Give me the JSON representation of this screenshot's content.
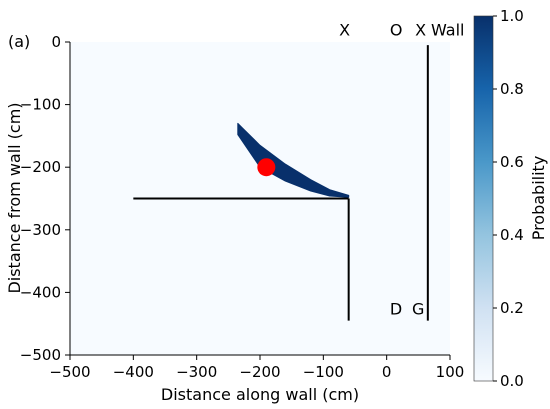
{
  "chart_data": {
    "type": "heatmap",
    "panel_label": "(a)",
    "xlabel": "Distance along wall (cm)",
    "ylabel": "Distance from wall (cm)",
    "xlim": [
      -500,
      100
    ],
    "ylim": [
      -500,
      0
    ],
    "x_ticks": [
      -500,
      -400,
      -300,
      -200,
      -100,
      0,
      100
    ],
    "y_ticks": [
      0,
      -100,
      -200,
      -300,
      -400,
      -500
    ],
    "background_probability": 0.0,
    "probability_band": {
      "description": "high-probability crescent",
      "probability": 1.0,
      "upper_edge": [
        [
          -235,
          -130
        ],
        [
          -200,
          -165
        ],
        [
          -160,
          -195
        ],
        [
          -120,
          -220
        ],
        [
          -90,
          -236
        ],
        [
          -60,
          -245
        ]
      ],
      "lower_edge": [
        [
          -60,
          -248
        ],
        [
          -90,
          -246
        ],
        [
          -120,
          -238
        ],
        [
          -160,
          -222
        ],
        [
          -200,
          -200
        ],
        [
          -235,
          -148
        ]
      ]
    },
    "walls": [
      {
        "name": "horizontal-wall",
        "points": [
          [
            -400,
            -250
          ],
          [
            -60,
            -250
          ]
        ]
      },
      {
        "name": "vertical-wall-inner",
        "points": [
          [
            -60,
            -250
          ],
          [
            -60,
            -445
          ]
        ]
      },
      {
        "name": "vertical-wall-right",
        "points": [
          [
            65,
            -5
          ],
          [
            65,
            -445
          ]
        ]
      }
    ],
    "marker": {
      "x": -190,
      "y": -200,
      "color": "#ff0000"
    },
    "annotations": [
      {
        "text": "X",
        "x": -75,
        "y": 10
      },
      {
        "text": "O",
        "x": 5,
        "y": 10
      },
      {
        "text": "X",
        "x": 45,
        "y": 10
      },
      {
        "text": "Wall",
        "x": 70,
        "y": 10
      },
      {
        "text": "D",
        "x": 5,
        "y": -435
      },
      {
        "text": "G",
        "x": 40,
        "y": -435
      }
    ],
    "colorbar": {
      "label": "Probability",
      "range": [
        0.0,
        1.0
      ],
      "ticks": [
        "0.0",
        "0.2",
        "0.4",
        "0.6",
        "0.8",
        "1.0"
      ],
      "color_low": "#f7fbff",
      "color_high": "#08306b"
    }
  }
}
